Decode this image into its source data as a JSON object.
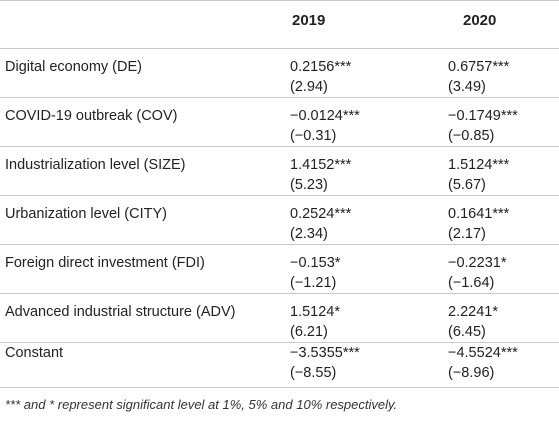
{
  "table": {
    "headers": [
      "",
      "2019",
      "2020"
    ],
    "rows": [
      {
        "label": "Digital economy (DE)",
        "v2019": "0.2156***",
        "t2019": "(2.94)",
        "v2020": "0.6757***",
        "t2020": "(3.49)"
      },
      {
        "label": "COVID-19 outbreak (COV)",
        "v2019": "−0.0124***",
        "t2019": "(−0.31)",
        "v2020": "−0.1749***",
        "t2020": "(−0.85)"
      },
      {
        "label": "Industrialization level (SIZE)",
        "v2019": "1.4152***",
        "t2019": "(5.23)",
        "v2020": "1.5124***",
        "t2020": "(5.67)"
      },
      {
        "label": "Urbanization level (CITY)",
        "v2019": "0.2524***",
        "t2019": "(2.34)",
        "v2020": "0.1641***",
        "t2020": "(2.17)"
      },
      {
        "label": "Foreign direct investment (FDI)",
        "v2019": "−0.153*",
        "t2019": "(−1.21)",
        "v2020": "−0.2231*",
        "t2020": "(−1.64)"
      },
      {
        "label": "Advanced industrial structure (ADV)",
        "v2019": "1.5124*",
        "t2019": "(6.21)",
        "v2020": "2.2241*",
        "t2020": "(6.45)"
      },
      {
        "label": "Constant",
        "v2019": "−3.5355***",
        "t2019": "(−8.55)",
        "v2020": "−4.5524***",
        "t2020": "(−8.96)"
      }
    ],
    "note": "*** and * represent significant level at 1%, 5% and 10% respectively."
  }
}
